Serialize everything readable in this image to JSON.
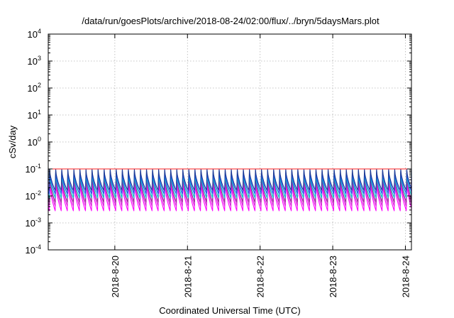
{
  "chart_data": {
    "type": "line",
    "title": "/data/run/goesPlots/archive/2018-08-24/02:00/flux/../bryn/5daysMars.plot",
    "xlabel": "Coordinated Universal Time (UTC)",
    "ylabel": "cSv/day",
    "yscale": "log",
    "ylim": [
      0.0001,
      10000
    ],
    "y_ticks": [
      {
        "base": "10",
        "exp": "-4",
        "value": 0.0001
      },
      {
        "base": "10",
        "exp": "-3",
        "value": 0.001
      },
      {
        "base": "10",
        "exp": "-2",
        "value": 0.01
      },
      {
        "base": "10",
        "exp": "-1",
        "value": 0.1
      },
      {
        "base": "10",
        "exp": "0",
        "value": 1
      },
      {
        "base": "10",
        "exp": "1",
        "value": 10
      },
      {
        "base": "10",
        "exp": "2",
        "value": 100
      },
      {
        "base": "10",
        "exp": "3",
        "value": 1000
      },
      {
        "base": "10",
        "exp": "4",
        "value": 10000
      }
    ],
    "xlim": [
      "2018-08-19 02:00",
      "2018-08-24 02:00"
    ],
    "x_ticks": [
      {
        "label": "2018-8-20",
        "time": "2018-08-20 00:00"
      },
      {
        "label": "2018-8-21",
        "time": "2018-08-21 00:00"
      },
      {
        "label": "2018-8-22",
        "time": "2018-08-22 00:00"
      },
      {
        "label": "2018-8-23",
        "time": "2018-08-23 00:00"
      },
      {
        "label": "2018-8-24",
        "time": "2018-08-24 00:00"
      }
    ],
    "grid": true,
    "legend": "none",
    "sawtooth_period_hours": 2.0,
    "series": [
      {
        "color": "#ff00ff",
        "peak": 0.033,
        "trough": 0.0028
      },
      {
        "color": "#dd22dd",
        "peak": 0.045,
        "trough": 0.0042
      },
      {
        "color": "#9b2a9b",
        "peak": 0.058,
        "trough": 0.0058
      },
      {
        "color": "#00cccc",
        "peak": 0.07,
        "trough": 0.0085
      },
      {
        "color": "#2255ee",
        "peak": 0.085,
        "trough": 0.012
      },
      {
        "color": "#1e3c96",
        "peak": 0.1,
        "trough": 0.016
      },
      {
        "color": "#ff2222",
        "peak": 0.1,
        "trough": 0.1
      }
    ]
  }
}
